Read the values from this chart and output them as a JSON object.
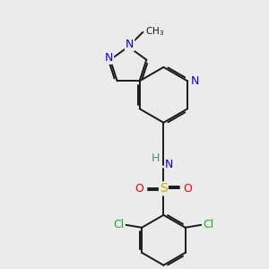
{
  "bg_color": "#ebebeb",
  "bond_color": "#1a1a1a",
  "atom_colors": {
    "N": "#0000ee",
    "O": "#ff0000",
    "S": "#ccaa00",
    "Cl": "#22aa22",
    "C": "#1a1a1a",
    "H": "#4a8a8a"
  },
  "lw": 1.4
}
